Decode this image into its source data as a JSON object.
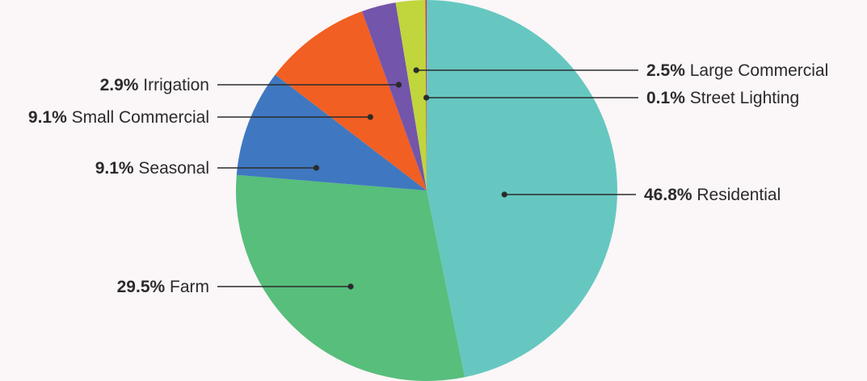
{
  "chart_data": {
    "type": "pie",
    "title": "",
    "slices": [
      {
        "name": "Residential",
        "value": 46.8,
        "label_pct": "46.8%",
        "color": "#66c7c1"
      },
      {
        "name": "Farm",
        "value": 29.5,
        "label_pct": "29.5%",
        "color": "#57be7c"
      },
      {
        "name": "Seasonal",
        "value": 9.1,
        "label_pct": "9.1%",
        "color": "#3f78c0"
      },
      {
        "name": "Small Commercial",
        "value": 9.1,
        "label_pct": "9.1%",
        "color": "#f15f22"
      },
      {
        "name": "Irrigation",
        "value": 2.9,
        "label_pct": "2.9%",
        "color": "#7355ab"
      },
      {
        "name": "Large Commercial",
        "value": 2.5,
        "label_pct": "2.5%",
        "color": "#c0d63c"
      },
      {
        "name": "Street Lighting",
        "value": 0.1,
        "label_pct": "0.1%",
        "color": "#e0245e"
      }
    ],
    "legend": "leader-line labels"
  }
}
